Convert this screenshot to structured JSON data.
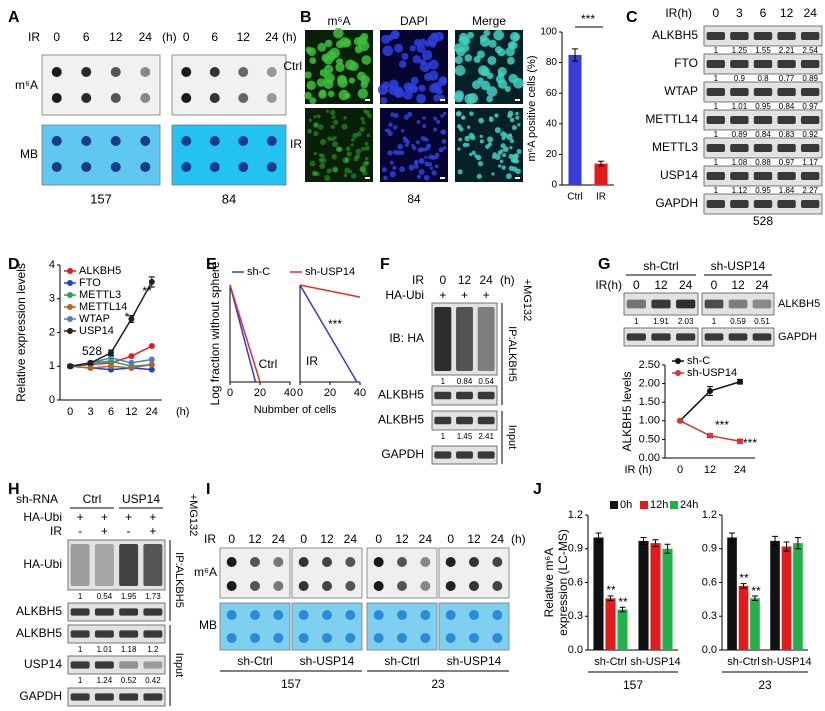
{
  "letters": [
    "A",
    "B",
    "C",
    "D",
    "E",
    "F",
    "G",
    "H",
    "I",
    "J"
  ],
  "A": {
    "ir": "IR",
    "times": [
      "0",
      "6",
      "12",
      "24"
    ],
    "unit": "(h)",
    "rows": [
      "m⁶A",
      "MB"
    ],
    "cells": [
      "157",
      "84"
    ]
  },
  "B": {
    "columns": [
      "m⁶A",
      "DAPI",
      "Merge"
    ],
    "rows": [
      "Ctrl",
      "IR"
    ],
    "cell": "84"
  },
  "C": {
    "ir": "IR(h)",
    "times": [
      "0",
      "3",
      "6",
      "12",
      "24"
    ],
    "rows": [
      {
        "label": "ALKBH5",
        "values": [
          "1",
          "1.25",
          "1.55",
          "2.21",
          "2.54"
        ]
      },
      {
        "label": "FTO",
        "values": [
          "1",
          "0.9",
          "0.8",
          "0.77",
          "0.89"
        ]
      },
      {
        "label": "WTAP",
        "values": [
          "1",
          "1.01",
          "0.95",
          "0.84",
          "0.97"
        ]
      },
      {
        "label": "METTL14",
        "values": [
          "1",
          "0.89",
          "0.84",
          "0.83",
          "0.92"
        ]
      },
      {
        "label": "METTL3",
        "values": [
          "1",
          "1.08",
          "0.88",
          "0.97",
          "1.17"
        ]
      },
      {
        "label": "USP14",
        "values": [
          "1",
          "1.12",
          "0.95",
          "1.84",
          "2.27"
        ]
      },
      {
        "label": "GAPDH"
      }
    ],
    "cell": "528"
  },
  "F": {
    "ir": "IR",
    "times": [
      "0",
      "12",
      "24"
    ],
    "unit": "(h)",
    "ha": "HA-Ubi",
    "ha_marks": [
      "+",
      "+",
      "+"
    ],
    "rows": [
      {
        "label": "IB: HA",
        "values": [
          "1",
          "0.84",
          "0.54"
        ]
      },
      {
        "label": "ALKBH5"
      },
      {
        "label": "ALKBH5",
        "values": [
          "1",
          "1.45",
          "2.41"
        ]
      },
      {
        "label": "GAPDH"
      }
    ],
    "ip": "IP:ALKBH5",
    "input": "Input",
    "mg": "+MG132"
  },
  "G": {
    "groups": [
      "sh-Ctrl",
      "sh-USP14"
    ],
    "ir": "IR(h)",
    "times": [
      "0",
      "12",
      "24",
      "0",
      "12",
      "24"
    ],
    "rows": [
      {
        "label": "ALKBH5",
        "values": [
          "1",
          "1.91",
          "2.03",
          "1",
          "0.59",
          "0.51"
        ]
      },
      {
        "label": "GAPDH"
      }
    ]
  },
  "H": {
    "shrna": "sh-RNA",
    "groups": [
      "Ctrl",
      "USP14"
    ],
    "ha": "HA-Ubi",
    "ha_marks": [
      "+",
      "+",
      "+",
      "+"
    ],
    "ir": "IR",
    "ir_marks": [
      "-",
      "+",
      "-",
      "+"
    ],
    "rows": [
      {
        "label": "HA-Ubi",
        "values": [
          "1",
          "0.54",
          "1.95",
          "1.73"
        ]
      },
      {
        "label": "ALKBH5"
      },
      {
        "label": "ALKBH5",
        "values": [
          "1",
          "1.01",
          "1.18",
          "1.2"
        ]
      },
      {
        "label": "USP14",
        "values": [
          "1",
          "1.24",
          "0.52",
          "0.42"
        ]
      },
      {
        "label": "GAPDH"
      }
    ],
    "ip": "IP:ALKBH5",
    "input": "Input",
    "mg": "+MG132"
  },
  "I": {
    "ir": "IR",
    "times": [
      "0",
      "12",
      "24"
    ],
    "unit": "(h)",
    "rows": [
      "m⁶A",
      "MB"
    ],
    "groups": [
      "sh-Ctrl",
      "sh-USP14",
      "sh-Ctrl",
      "sh-USP14"
    ],
    "cells": [
      "157",
      "23"
    ]
  },
  "chart_data": [
    {
      "type": "bar",
      "ylabel": "m⁶A positive cells (%)",
      "categories": [
        "Ctrl",
        "IR"
      ],
      "values": [
        85,
        14
      ],
      "errors": [
        4,
        1.5
      ],
      "colors": [
        "#3b3bdc",
        "#e41a1c"
      ],
      "ylim": [
        0,
        100
      ],
      "yticks": [
        0,
        20,
        40,
        60,
        80,
        100
      ],
      "annotations": [
        "***"
      ]
    },
    {
      "type": "line",
      "ylabel": "Relative expression levels",
      "xlabel": "(h)",
      "categories": [
        "0",
        "3",
        "6",
        "12",
        "24"
      ],
      "ylim": [
        0,
        4
      ],
      "yticks": [
        0,
        1,
        2,
        3,
        4
      ],
      "legend": "upper left",
      "series": [
        {
          "name": "ALKBH5",
          "color": "#e41a1c",
          "values": [
            1,
            1.05,
            1.1,
            1.3,
            1.6
          ]
        },
        {
          "name": "FTO",
          "color": "#1f3fdc",
          "values": [
            1,
            0.95,
            0.9,
            0.95,
            0.9
          ]
        },
        {
          "name": "METTL3",
          "color": "#2ca05a",
          "values": [
            1,
            1.1,
            1.15,
            1.0,
            1.05
          ]
        },
        {
          "name": "METTL14",
          "color": "#b5651d",
          "values": [
            1,
            0.95,
            1.0,
            0.95,
            1.05
          ]
        },
        {
          "name": "WTAP",
          "color": "#4a7fc1",
          "values": [
            1,
            1.1,
            1.25,
            1.1,
            1.2
          ]
        },
        {
          "name": "USP14",
          "color": "#222222",
          "values": [
            1,
            1.1,
            1.4,
            2.4,
            3.5
          ],
          "errors": [
            0.05,
            0.05,
            0.08,
            0.1,
            0.15
          ]
        }
      ],
      "annotations": [
        "528",
        "*",
        "**"
      ]
    },
    {
      "type": "line",
      "ylabel": "Log fraction without sphere",
      "xlabel": "Nubmber of cells",
      "xlim": [
        0,
        40
      ],
      "xticks": [
        0,
        20,
        40
      ],
      "ylim": [
        -2,
        0
      ],
      "legend": "top",
      "series": [
        {
          "name": "sh-C",
          "color": "#3a3ad0",
          "x": [
            0,
            17
          ],
          "values": [
            0,
            -2
          ]
        },
        {
          "name": "sh-USP14",
          "color": "#e0302f",
          "x": [
            0,
            20
          ],
          "values": [
            0,
            -2
          ]
        }
      ],
      "annotations": [
        "Ctrl"
      ]
    },
    {
      "type": "line",
      "xlim": [
        0,
        40
      ],
      "xticks": [
        0,
        20,
        40
      ],
      "ylim": [
        -2,
        0
      ],
      "series": [
        {
          "color": "#3a3ad0",
          "x": [
            0,
            38
          ],
          "values": [
            0,
            -2
          ]
        },
        {
          "color": "#e0302f",
          "x": [
            0,
            40
          ],
          "values": [
            0,
            -0.25
          ]
        }
      ],
      "annotations": [
        "IR",
        "***"
      ]
    },
    {
      "type": "line",
      "ylabel": "ALKBH5 levels",
      "xlabel": "IR (h)",
      "categories": [
        "0",
        "12",
        "24"
      ],
      "ylim": [
        0,
        2.5
      ],
      "yticks": [
        {
          "value": 0,
          "label": "0.00"
        },
        {
          "value": 0.5,
          "label": "0.50"
        },
        {
          "value": 1,
          "label": "1.00"
        },
        {
          "value": 1.5,
          "label": "1.50"
        },
        {
          "value": 2,
          "label": "2.00"
        },
        {
          "value": 2.5,
          "label": "2.50"
        }
      ],
      "legend": "upper left",
      "series": [
        {
          "name": "sh-C",
          "color": "#111111",
          "values": [
            1,
            1.8,
            2.05
          ],
          "errors": [
            0,
            0.12,
            0.06
          ]
        },
        {
          "name": "sh-USP14",
          "color": "#e0302f",
          "values": [
            1,
            0.6,
            0.45
          ],
          "errors": [
            0,
            0.05,
            0.05
          ]
        }
      ],
      "annotations": [
        "***",
        "***"
      ]
    },
    {
      "type": "bar",
      "ylabel": [
        "Relative m⁶A",
        "expression (LC-MS)"
      ],
      "xlabel": "157",
      "categories": [
        "sh-Ctrl",
        "sh-USP14"
      ],
      "ylim": [
        0,
        1.2
      ],
      "yticks": [
        {
          "value": 0,
          "label": "0.0"
        },
        0.3,
        0.6,
        0.9,
        1.2
      ],
      "legend": "top",
      "series": [
        {
          "name": "0h",
          "color": "#111111",
          "values": [
            1,
            0.97
          ],
          "errors": [
            0.04,
            0.03
          ]
        },
        {
          "name": "12h",
          "color": "#e41a1c",
          "values": [
            0.46,
            0.95
          ],
          "errors": [
            0.02,
            0.03
          ]
        },
        {
          "name": "24h",
          "color": "#22b04b",
          "values": [
            0.36,
            0.9
          ],
          "errors": [
            0.02,
            0.04
          ]
        }
      ],
      "annotations": [
        "**",
        "**"
      ]
    },
    {
      "type": "bar",
      "xlabel": "23",
      "categories": [
        "sh-Ctrl",
        "sh-USP14"
      ],
      "ylim": [
        0,
        1.2
      ],
      "yticks": [
        {
          "value": 0,
          "label": "0.0"
        },
        0.3,
        0.6,
        0.9,
        1.2
      ],
      "series": [
        {
          "color": "#111111",
          "values": [
            1,
            0.97
          ],
          "errors": [
            0.04,
            0.04
          ]
        },
        {
          "color": "#e41a1c",
          "values": [
            0.57,
            0.92
          ],
          "errors": [
            0.02,
            0.04
          ]
        },
        {
          "color": "#22b04b",
          "values": [
            0.46,
            0.95
          ],
          "errors": [
            0.02,
            0.05
          ]
        }
      ],
      "annotations": [
        "**",
        "**"
      ]
    }
  ]
}
